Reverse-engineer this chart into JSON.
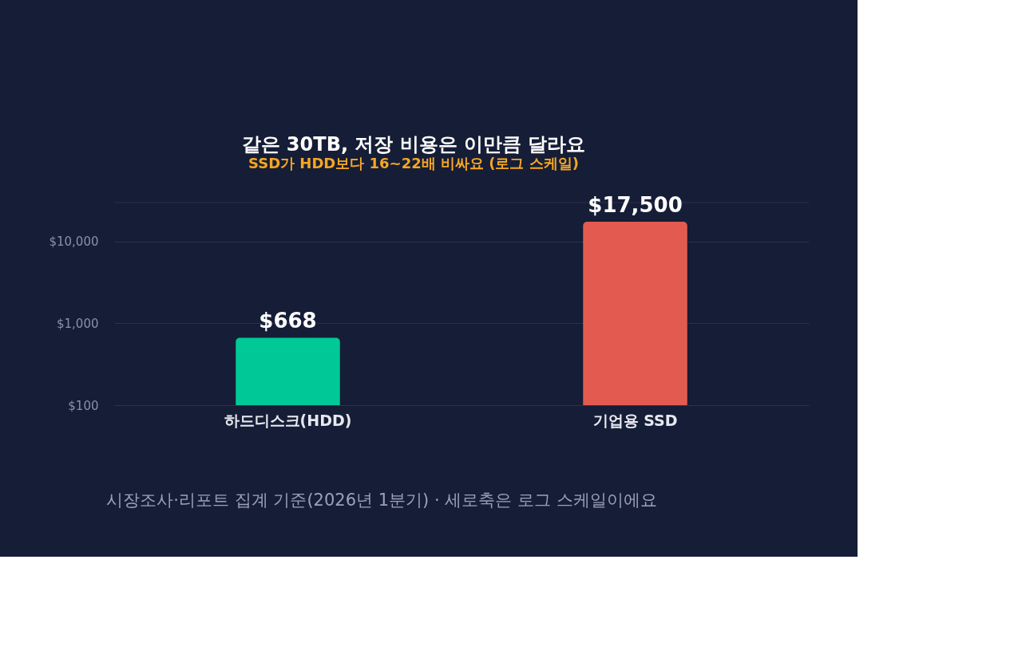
{
  "chart_data": {
    "type": "bar",
    "title": "같은 30TB, 저장 비용은 이만큼 달라요",
    "subtitle": "SSD가 HDD보다 16~22배 비싸요 (로그 스케일)",
    "categories": [
      "하드디스크(HDD)",
      "기업용 SSD"
    ],
    "values": [
      668,
      17500
    ],
    "colors": [
      "#00c896",
      "#e35b50"
    ],
    "value_labels": [
      "$668",
      "$17,500"
    ],
    "log": "y",
    "ylim": [
      100,
      30000
    ],
    "yticks": [
      {
        "value": 100,
        "label": "$100"
      },
      {
        "value": 1000,
        "label": "$1,000"
      },
      {
        "value": 10000,
        "label": "$10,000"
      }
    ],
    "grid": "y",
    "annotations": [
      "시장조사·리포트 집계 기준(2026년 1분기) · 세로축은 로그 스케일이에요"
    ]
  }
}
